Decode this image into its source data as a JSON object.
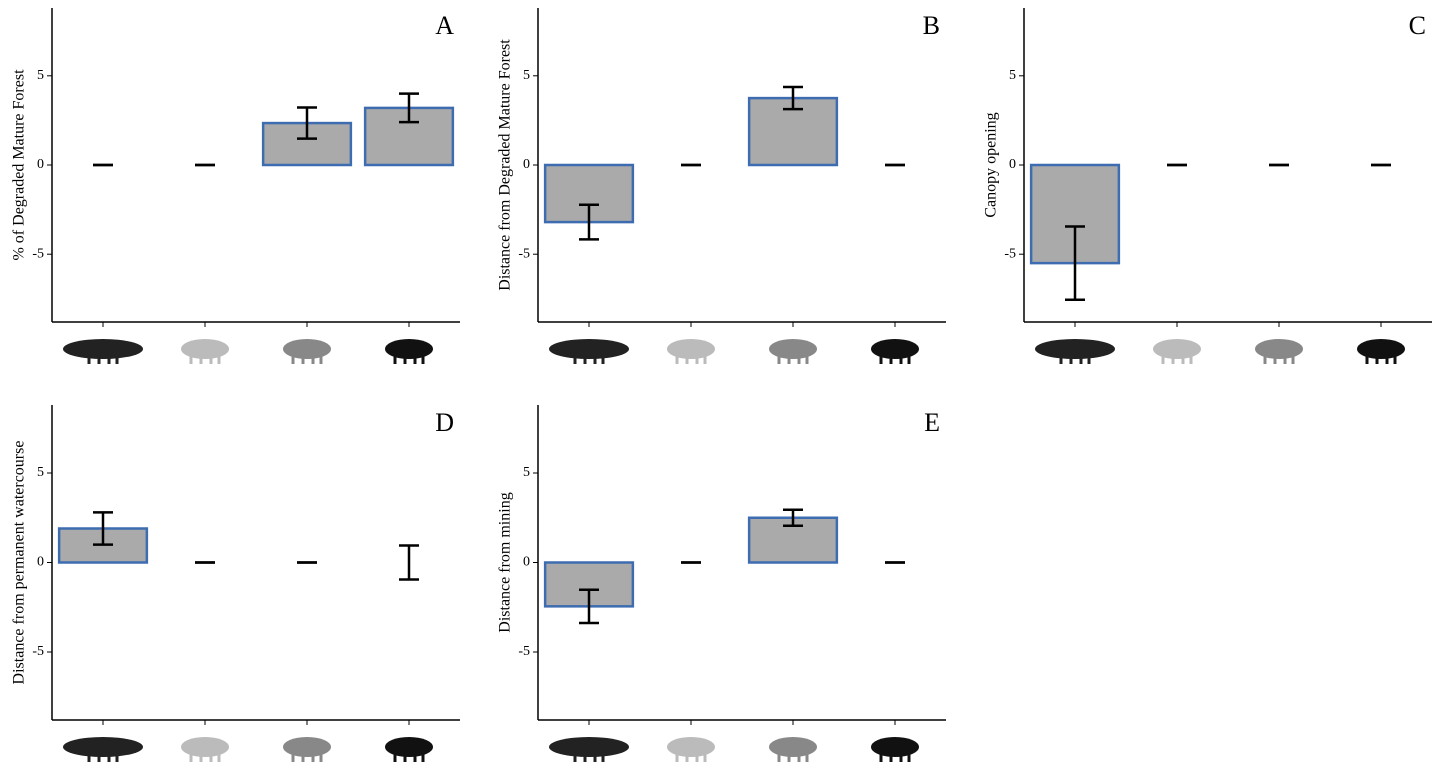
{
  "chart_data": [
    {
      "type": "bar",
      "title": "A",
      "ylabel": "% of Degraded Mature Forest",
      "categories": [
        null,
        null,
        null,
        null
      ],
      "values": [
        0,
        0,
        2.35,
        3.2
      ],
      "errors": [
        0,
        0,
        0.87,
        0.8
      ],
      "ylim": [
        -8.8,
        8.8
      ],
      "yticks": [
        -5,
        0,
        5
      ],
      "color": "#aaaaaa",
      "edge_color": "#3e6cb0"
    },
    {
      "type": "bar",
      "title": "B",
      "ylabel": "Distance from Degraded Mature Forest",
      "categories": [
        null,
        null,
        null,
        null
      ],
      "values": [
        -3.2,
        0,
        3.75,
        0
      ],
      "errors": [
        0.97,
        0,
        0.62,
        0
      ],
      "ylim": [
        -8.8,
        8.8
      ],
      "yticks": [
        -5,
        0,
        5
      ],
      "color": "#aaaaaa",
      "edge_color": "#3e6cb0"
    },
    {
      "type": "bar",
      "title": "C",
      "ylabel": "Canopy opening",
      "categories": [
        null,
        null,
        null,
        null
      ],
      "values": [
        -5.5,
        0,
        0,
        0
      ],
      "errors": [
        2.05,
        0,
        0,
        0
      ],
      "ylim": [
        -8.8,
        8.8
      ],
      "yticks": [
        -5,
        0,
        5
      ],
      "color": "#aaaaaa",
      "edge_color": "#3e6cb0"
    },
    {
      "type": "bar",
      "title": "D",
      "ylabel": "Distance from permanent watercourse",
      "categories": [
        null,
        null,
        null,
        null
      ],
      "values": [
        1.9,
        0,
        0,
        0
      ],
      "errors": [
        0.9,
        0,
        0,
        0.95
      ],
      "ylim": [
        -8.8,
        8.8
      ],
      "yticks": [
        -5,
        0,
        5
      ],
      "color": "#aaaaaa",
      "edge_color": "#3e6cb0"
    },
    {
      "type": "bar",
      "title": "E",
      "ylabel": "Distance from mining",
      "categories": [
        null,
        null,
        null,
        null
      ],
      "values": [
        -2.45,
        0,
        2.5,
        0
      ],
      "errors": [
        0.93,
        0,
        0.45,
        0
      ],
      "ylim": [
        -8.8,
        8.8
      ],
      "yticks": [
        -5,
        0,
        5
      ],
      "color": "#aaaaaa",
      "edge_color": "#3e6cb0"
    }
  ]
}
